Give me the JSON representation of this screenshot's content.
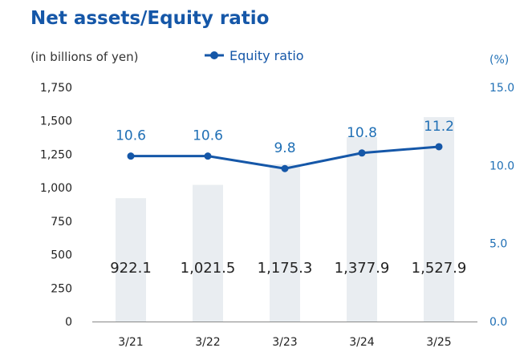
{
  "chart_data": {
    "type": "bar+line",
    "title": "Net assets/Equity ratio",
    "unit_note": "(in billions of yen)",
    "right_unit": "(%)",
    "categories": [
      "3/21",
      "3/22",
      "3/23",
      "3/24",
      "3/25"
    ],
    "series": [
      {
        "name": "Net assets",
        "type": "bar",
        "values": [
          922.1,
          1021.5,
          1175.3,
          1377.9,
          1527.9
        ],
        "labels": [
          "922.1",
          "1,021.5",
          "1,175.3",
          "1,377.9",
          "1,527.9"
        ]
      },
      {
        "name": "Equity ratio",
        "type": "line",
        "axis": "right",
        "values": [
          10.6,
          10.6,
          9.8,
          10.8,
          11.2
        ],
        "labels": [
          "10.6",
          "10.6",
          "9.8",
          "10.8",
          "11.2"
        ]
      }
    ],
    "left_axis": {
      "ylim": [
        0,
        1750
      ],
      "ticks": [
        "0",
        "250",
        "500",
        "750",
        "1,000",
        "1,250",
        "1,500",
        "1,750"
      ]
    },
    "right_axis": {
      "ylim": [
        0,
        15
      ],
      "ticks": [
        "0.0",
        "5.0",
        "10.0",
        "15.0"
      ]
    },
    "grid": false,
    "legend_position": "top"
  },
  "colors": {
    "title": "#1557a8",
    "line": "#1557a8",
    "bar": "#e9edf1",
    "right_axis": "#1f6fb5"
  }
}
